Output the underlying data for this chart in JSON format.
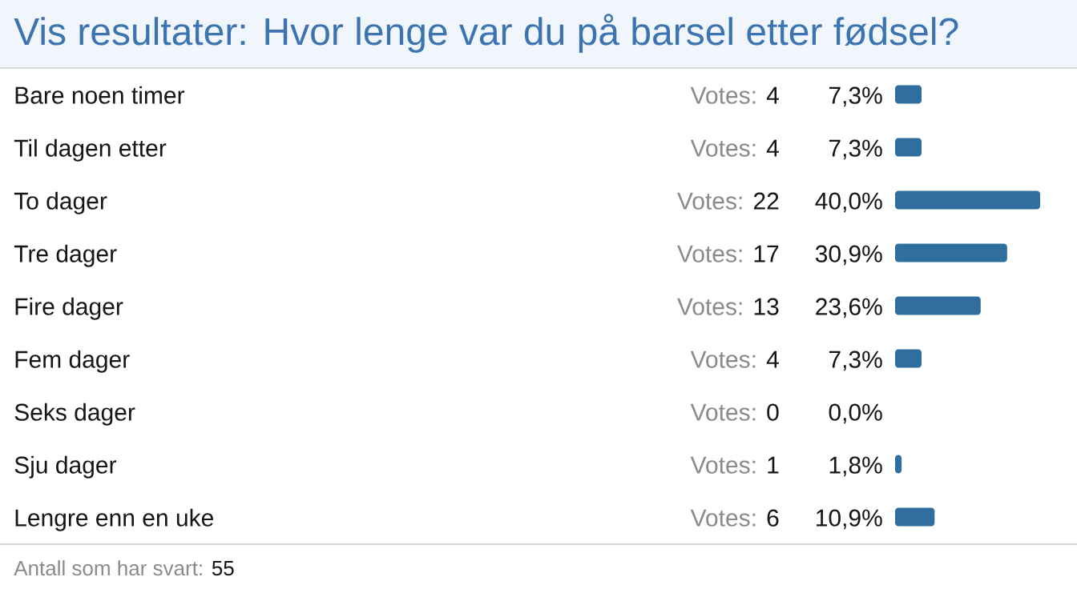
{
  "chart_data": {
    "type": "bar",
    "orientation": "horizontal",
    "title": "Vis resultater: Hvor lenge var du på barsel etter fødsel?",
    "categories": [
      "Bare noen timer",
      "Til dagen etter",
      "To dager",
      "Tre dager",
      "Fire dager",
      "Fem dager",
      "Seks dager",
      "Sju dager",
      "Lengre enn en uke"
    ],
    "values": [
      7.3,
      7.3,
      40.0,
      30.9,
      23.6,
      7.3,
      0.0,
      1.8,
      10.9
    ],
    "value_labels": [
      "7,3%",
      "7,3%",
      "40,0%",
      "30,9%",
      "23,6%",
      "7,3%",
      "0,0%",
      "1,8%",
      "10,9%"
    ],
    "color": "#2f6e9e",
    "annotations": [
      "Votes: 4",
      "Votes: 4",
      "Votes: 22",
      "Votes: 17",
      "Votes: 13",
      "Votes: 4",
      "Votes: 0",
      "Votes: 1",
      "Votes: 6",
      "Antall som har svart: 55"
    ]
  }
}
